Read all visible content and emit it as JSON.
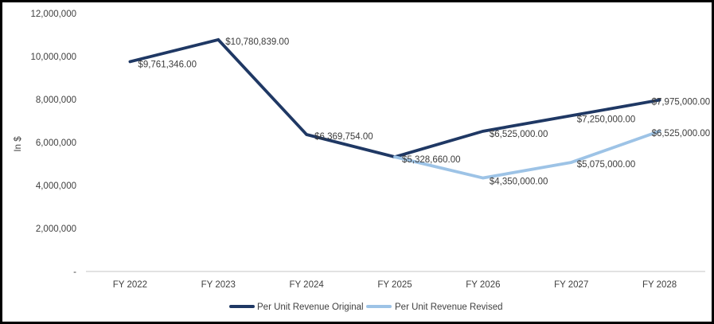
{
  "chart_data": {
    "type": "line",
    "title": "",
    "ylabel": "In $",
    "xlabel": "",
    "categories": [
      "FY 2022",
      "FY 2023",
      "FY 2024",
      "FY 2025",
      "FY 2026",
      "FY 2027",
      "FY 2028"
    ],
    "series": [
      {
        "name": "Per Unit Revenue Original",
        "color": "#1F3864",
        "values": [
          9761346,
          10780839,
          6369754,
          5328660,
          6525000,
          7250000,
          7975000
        ],
        "labels": [
          "$9,761,346.00",
          "$10,780,839.00",
          "$6,369,754.00",
          "$5,328,660.00",
          "$6,525,000.00",
          "$7,250,000.00",
          "$7,975,000.00"
        ]
      },
      {
        "name": "Per Unit Revenue Revised",
        "color": "#9DC3E6",
        "values": [
          null,
          null,
          null,
          5328660,
          4350000,
          5075000,
          6525000
        ],
        "labels": [
          null,
          null,
          null,
          null,
          "$4,350,000.00",
          "$5,075,000.00",
          "$6,525,000.00"
        ]
      }
    ],
    "ylim": [
      0,
      12000000
    ],
    "yticks": [
      {
        "value": 12000000,
        "label": "12,000,000"
      },
      {
        "value": 10000000,
        "label": "10,000,000"
      },
      {
        "value": 8000000,
        "label": "8,000,000"
      },
      {
        "value": 6000000,
        "label": "6,000,000"
      },
      {
        "value": 4000000,
        "label": "4,000,000"
      },
      {
        "value": 2000000,
        "label": "2,000,000"
      },
      {
        "value": 0,
        "label": "-"
      }
    ],
    "grid": false,
    "legend_position": "bottom",
    "legend": [
      "Per Unit Revenue Original",
      "Per Unit Revenue Revised"
    ],
    "colors": {
      "axis_line": "#D9D9D9",
      "tick_text": "#404040",
      "data_label_text": "#3b3b3b",
      "series_original": "#1F3864",
      "series_revised": "#9DC3E6",
      "frame_border": "#000000",
      "background": "#ffffff"
    }
  }
}
